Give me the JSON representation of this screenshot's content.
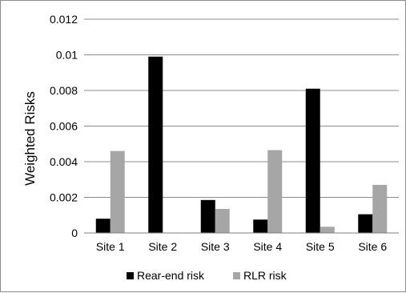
{
  "chart_data": {
    "type": "bar",
    "title": "",
    "xlabel": "",
    "ylabel": "Weighted Risks",
    "ylim": [
      0,
      0.012
    ],
    "yticks": [
      0,
      0.002,
      0.004,
      0.006,
      0.008,
      0.01,
      0.012
    ],
    "ytick_labels": [
      "0",
      "0.002",
      "0.004",
      "0.006",
      "0.008",
      "0.01",
      "0.012"
    ],
    "categories": [
      "Site 1",
      "Site 2",
      "Site 3",
      "Site 4",
      "Site 5",
      "Site 6"
    ],
    "series": [
      {
        "name": "Rear-end risk",
        "color": "#000000",
        "values": [
          0.0008,
          0.0099,
          0.00185,
          0.00075,
          0.0081,
          0.00105
        ]
      },
      {
        "name": "RLR risk",
        "color": "#a6a6a6",
        "values": [
          0.0046,
          0.0,
          0.00135,
          0.00465,
          0.00035,
          0.0027
        ]
      }
    ],
    "grid": true,
    "legend_position": "bottom"
  }
}
